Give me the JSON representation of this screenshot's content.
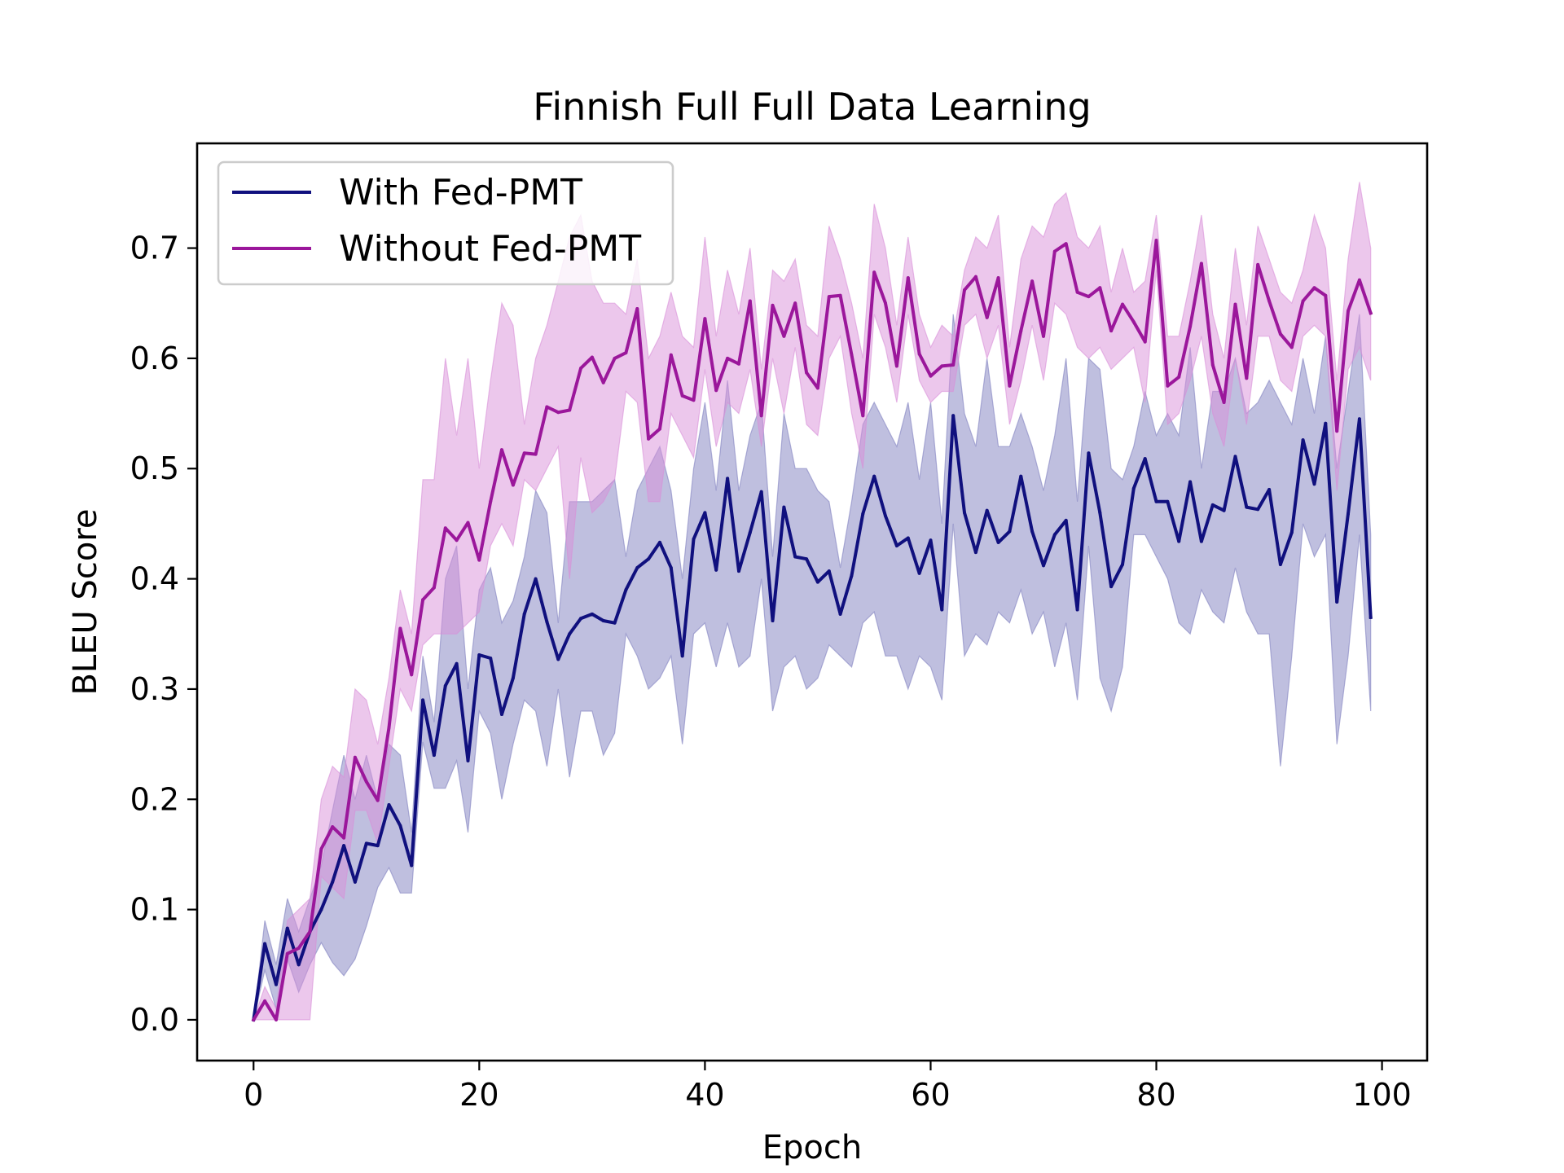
{
  "chart_data": {
    "type": "line",
    "title": "Finnish Full Full Data Learning",
    "xlabel": "Epoch",
    "ylabel": "BLEU Score",
    "xlim": [
      -5,
      104
    ],
    "ylim": [
      -0.037,
      0.795
    ],
    "xticks": [
      0,
      20,
      40,
      60,
      80,
      100
    ],
    "yticks": [
      0.0,
      0.1,
      0.2,
      0.3,
      0.4,
      0.5,
      0.6,
      0.7
    ],
    "xtick_labels": [
      "0",
      "20",
      "40",
      "60",
      "80",
      "100"
    ],
    "ytick_labels": [
      "0.0",
      "0.1",
      "0.2",
      "0.3",
      "0.4",
      "0.5",
      "0.6",
      "0.7"
    ],
    "grid": false,
    "legend": "top-left",
    "x": [
      0,
      1,
      2,
      3,
      4,
      5,
      6,
      7,
      8,
      9,
      10,
      11,
      12,
      13,
      14,
      15,
      16,
      17,
      18,
      19,
      20,
      21,
      22,
      23,
      24,
      25,
      26,
      27,
      28,
      29,
      30,
      31,
      32,
      33,
      34,
      35,
      36,
      37,
      38,
      39,
      40,
      41,
      42,
      43,
      44,
      45,
      46,
      47,
      48,
      49,
      50,
      51,
      52,
      53,
      54,
      55,
      56,
      57,
      58,
      59,
      60,
      61,
      62,
      63,
      64,
      65,
      66,
      67,
      68,
      69,
      70,
      71,
      72,
      73,
      74,
      75,
      76,
      77,
      78,
      79,
      80,
      81,
      82,
      83,
      84,
      85,
      86,
      87,
      88,
      89,
      90,
      91,
      92,
      93,
      94,
      95,
      96,
      97,
      98,
      99
    ],
    "series": [
      {
        "name": "With Fed-PMT",
        "color": "#10107e",
        "band_color": "#8080c0",
        "values": [
          0.0,
          0.069,
          0.032,
          0.083,
          0.05,
          0.08,
          0.1,
          0.125,
          0.158,
          0.125,
          0.16,
          0.158,
          0.195,
          0.176,
          0.14,
          0.29,
          0.24,
          0.303,
          0.323,
          0.235,
          0.331,
          0.328,
          0.277,
          0.31,
          0.368,
          0.4,
          0.361,
          0.327,
          0.35,
          0.364,
          0.368,
          0.362,
          0.36,
          0.39,
          0.41,
          0.418,
          0.433,
          0.41,
          0.33,
          0.436,
          0.46,
          0.408,
          0.491,
          0.407,
          0.442,
          0.479,
          0.362,
          0.465,
          0.42,
          0.418,
          0.397,
          0.407,
          0.368,
          0.403,
          0.459,
          0.493,
          0.457,
          0.43,
          0.437,
          0.405,
          0.435,
          0.372,
          0.548,
          0.46,
          0.424,
          0.462,
          0.433,
          0.443,
          0.493,
          0.443,
          0.412,
          0.44,
          0.453,
          0.372,
          0.514,
          0.46,
          0.393,
          0.413,
          0.482,
          0.509,
          0.47,
          0.47,
          0.434,
          0.488,
          0.434,
          0.467,
          0.462,
          0.511,
          0.465,
          0.463,
          0.481,
          0.413,
          0.442,
          0.526,
          0.486,
          0.541,
          0.379,
          0.459,
          0.545,
          0.365
        ],
        "lower": [
          0.0,
          0.045,
          0.01,
          0.055,
          0.025,
          0.05,
          0.07,
          0.052,
          0.04,
          0.055,
          0.085,
          0.12,
          0.138,
          0.115,
          0.115,
          0.252,
          0.21,
          0.21,
          0.235,
          0.17,
          0.28,
          0.26,
          0.2,
          0.25,
          0.29,
          0.28,
          0.23,
          0.3,
          0.22,
          0.28,
          0.28,
          0.24,
          0.26,
          0.35,
          0.33,
          0.3,
          0.31,
          0.33,
          0.25,
          0.35,
          0.36,
          0.32,
          0.36,
          0.32,
          0.33,
          0.4,
          0.28,
          0.32,
          0.33,
          0.3,
          0.31,
          0.34,
          0.33,
          0.32,
          0.36,
          0.37,
          0.33,
          0.33,
          0.3,
          0.33,
          0.32,
          0.29,
          0.45,
          0.33,
          0.35,
          0.34,
          0.37,
          0.36,
          0.39,
          0.35,
          0.37,
          0.32,
          0.36,
          0.29,
          0.43,
          0.31,
          0.28,
          0.32,
          0.44,
          0.44,
          0.42,
          0.4,
          0.36,
          0.35,
          0.39,
          0.37,
          0.36,
          0.41,
          0.37,
          0.35,
          0.35,
          0.23,
          0.33,
          0.45,
          0.42,
          0.44,
          0.25,
          0.33,
          0.44,
          0.28
        ],
        "upper": [
          0.0,
          0.09,
          0.05,
          0.11,
          0.08,
          0.11,
          0.14,
          0.19,
          0.24,
          0.2,
          0.24,
          0.2,
          0.25,
          0.24,
          0.17,
          0.33,
          0.27,
          0.4,
          0.43,
          0.3,
          0.39,
          0.41,
          0.36,
          0.38,
          0.42,
          0.48,
          0.46,
          0.36,
          0.47,
          0.47,
          0.47,
          0.48,
          0.49,
          0.42,
          0.48,
          0.5,
          0.52,
          0.48,
          0.4,
          0.5,
          0.56,
          0.48,
          0.58,
          0.48,
          0.53,
          0.56,
          0.42,
          0.55,
          0.5,
          0.5,
          0.48,
          0.47,
          0.41,
          0.47,
          0.54,
          0.56,
          0.54,
          0.52,
          0.56,
          0.49,
          0.56,
          0.45,
          0.64,
          0.55,
          0.52,
          0.6,
          0.52,
          0.52,
          0.55,
          0.52,
          0.48,
          0.53,
          0.6,
          0.47,
          0.6,
          0.59,
          0.5,
          0.49,
          0.52,
          0.57,
          0.53,
          0.55,
          0.53,
          0.61,
          0.5,
          0.57,
          0.57,
          0.6,
          0.55,
          0.56,
          0.58,
          0.56,
          0.54,
          0.6,
          0.55,
          0.62,
          0.5,
          0.57,
          0.64,
          0.44
        ]
      },
      {
        "name": "Without Fed-PMT",
        "color": "#9b179b",
        "band_color": "#d98fd9",
        "values": [
          0.0,
          0.017,
          0.0,
          0.06,
          0.065,
          0.08,
          0.155,
          0.175,
          0.165,
          0.238,
          0.216,
          0.199,
          0.265,
          0.355,
          0.313,
          0.381,
          0.392,
          0.446,
          0.435,
          0.451,
          0.417,
          0.47,
          0.517,
          0.485,
          0.514,
          0.513,
          0.556,
          0.551,
          0.553,
          0.591,
          0.601,
          0.578,
          0.6,
          0.605,
          0.645,
          0.527,
          0.536,
          0.603,
          0.566,
          0.562,
          0.636,
          0.571,
          0.6,
          0.595,
          0.652,
          0.548,
          0.648,
          0.62,
          0.65,
          0.587,
          0.573,
          0.656,
          0.657,
          0.603,
          0.548,
          0.678,
          0.65,
          0.593,
          0.673,
          0.604,
          0.584,
          0.593,
          0.594,
          0.662,
          0.674,
          0.637,
          0.673,
          0.575,
          0.625,
          0.67,
          0.62,
          0.697,
          0.704,
          0.66,
          0.656,
          0.664,
          0.625,
          0.649,
          0.633,
          0.615,
          0.707,
          0.575,
          0.583,
          0.629,
          0.686,
          0.594,
          0.56,
          0.649,
          0.582,
          0.685,
          0.652,
          0.622,
          0.61,
          0.652,
          0.664,
          0.657,
          0.534,
          0.643,
          0.671,
          0.641
        ],
        "lower": [
          0.0,
          0.0,
          0.0,
          0.0,
          0.0,
          0.0,
          0.13,
          0.12,
          0.11,
          0.19,
          0.19,
          0.16,
          0.23,
          0.3,
          0.28,
          0.34,
          0.35,
          0.35,
          0.35,
          0.36,
          0.37,
          0.43,
          0.45,
          0.43,
          0.49,
          0.48,
          0.5,
          0.52,
          0.4,
          0.51,
          0.46,
          0.47,
          0.49,
          0.57,
          0.56,
          0.47,
          0.47,
          0.55,
          0.53,
          0.51,
          0.59,
          0.52,
          0.56,
          0.55,
          0.59,
          0.52,
          0.6,
          0.55,
          0.61,
          0.54,
          0.53,
          0.6,
          0.62,
          0.55,
          0.5,
          0.64,
          0.61,
          0.56,
          0.64,
          0.58,
          0.56,
          0.57,
          0.57,
          0.63,
          0.64,
          0.6,
          0.63,
          0.54,
          0.58,
          0.63,
          0.58,
          0.65,
          0.64,
          0.61,
          0.6,
          0.61,
          0.59,
          0.6,
          0.61,
          0.56,
          0.68,
          0.54,
          0.55,
          0.58,
          0.62,
          0.55,
          0.52,
          0.6,
          0.54,
          0.62,
          0.62,
          0.58,
          0.57,
          0.62,
          0.63,
          0.62,
          0.48,
          0.59,
          0.61,
          0.58
        ],
        "upper": [
          0.0,
          0.03,
          0.01,
          0.09,
          0.1,
          0.11,
          0.2,
          0.23,
          0.22,
          0.3,
          0.29,
          0.25,
          0.31,
          0.39,
          0.35,
          0.49,
          0.49,
          0.6,
          0.53,
          0.6,
          0.5,
          0.58,
          0.65,
          0.63,
          0.54,
          0.6,
          0.63,
          0.67,
          0.71,
          0.73,
          0.67,
          0.65,
          0.65,
          0.64,
          0.69,
          0.6,
          0.62,
          0.66,
          0.62,
          0.61,
          0.71,
          0.62,
          0.68,
          0.64,
          0.7,
          0.59,
          0.68,
          0.67,
          0.69,
          0.63,
          0.62,
          0.72,
          0.69,
          0.65,
          0.6,
          0.74,
          0.7,
          0.63,
          0.71,
          0.64,
          0.61,
          0.63,
          0.62,
          0.68,
          0.71,
          0.7,
          0.73,
          0.61,
          0.69,
          0.72,
          0.71,
          0.74,
          0.75,
          0.71,
          0.7,
          0.72,
          0.66,
          0.7,
          0.66,
          0.67,
          0.73,
          0.62,
          0.62,
          0.67,
          0.73,
          0.64,
          0.6,
          0.7,
          0.63,
          0.72,
          0.69,
          0.66,
          0.65,
          0.68,
          0.73,
          0.7,
          0.58,
          0.69,
          0.76,
          0.7
        ]
      }
    ]
  }
}
